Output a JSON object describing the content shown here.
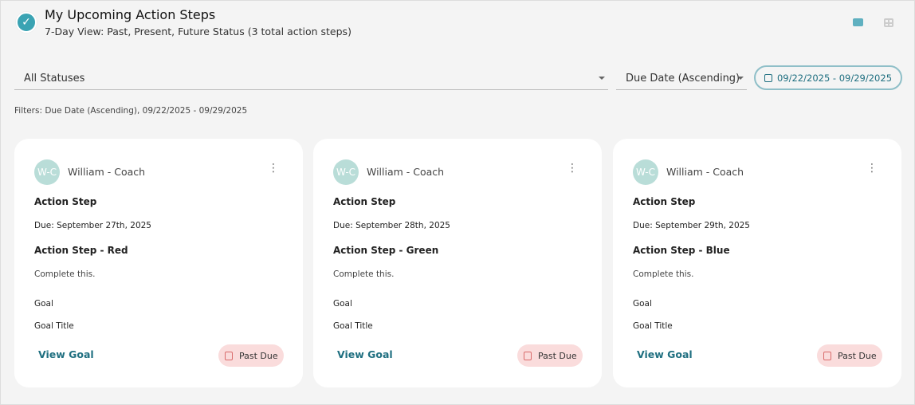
{
  "header": {
    "title": "My Upcoming Action Steps",
    "subtitle": "7-Day View: Past, Present, Future Status (3 total action steps)",
    "check_icon": "✓"
  },
  "view_toggle": {
    "card_view_icon": "card-view-icon",
    "grid_view_icon": "grid-view-icon",
    "active": "card"
  },
  "filters": {
    "status": "All Statuses",
    "sort": "Due Date (Ascending)",
    "date_range": "09/22/2025 - 09/29/2025",
    "summary": "Filters: Due Date (Ascending), 09/22/2025 - 09/29/2025"
  },
  "colors": {
    "accent": "#1f6f80",
    "badge_bg": "#fadcdc",
    "avatar": "#b9ddd8"
  },
  "cards": [
    {
      "initials": "W-C",
      "coach": "William - Coach",
      "type": "Action Step",
      "due": "Due: September 27th, 2025",
      "name": "Action Step - Red",
      "description": "Complete this.",
      "goal_label": "Goal",
      "goal_title": "Goal Title",
      "link": "View Goal",
      "status": "Past Due"
    },
    {
      "initials": "W-C",
      "coach": "William - Coach",
      "type": "Action Step",
      "due": "Due: September 28th, 2025",
      "name": "Action Step - Green",
      "description": "Complete this.",
      "goal_label": "Goal",
      "goal_title": "Goal Title",
      "link": "View Goal",
      "status": "Past Due"
    },
    {
      "initials": "W-C",
      "coach": "William - Coach",
      "type": "Action Step",
      "due": "Due: September 29th, 2025",
      "name": "Action Step - Blue",
      "description": "Complete this.",
      "goal_label": "Goal",
      "goal_title": "Goal Title",
      "link": "View Goal",
      "status": "Past Due"
    }
  ]
}
